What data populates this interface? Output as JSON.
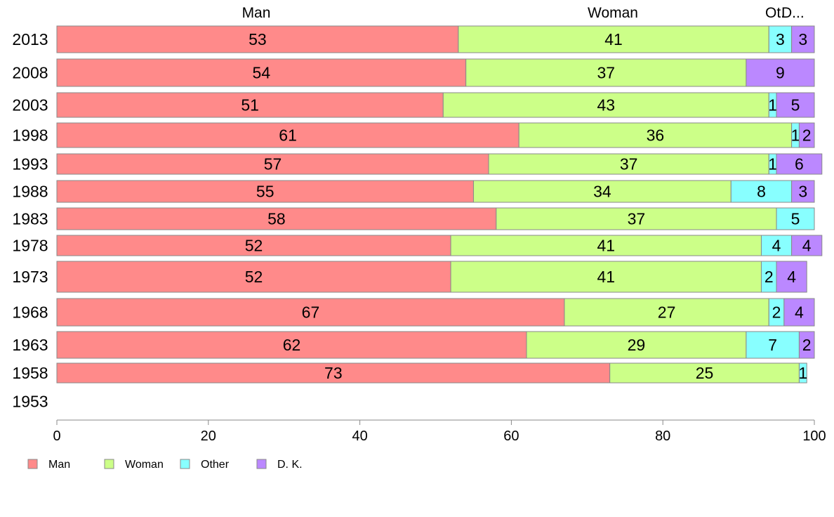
{
  "chart_data": {
    "type": "bar",
    "orientation": "horizontal",
    "stacked": true,
    "categories": [
      "2013",
      "2008",
      "2003",
      "1998",
      "1993",
      "1988",
      "1983",
      "1978",
      "1973",
      "1968",
      "1963",
      "1958",
      "1953"
    ],
    "series": [
      {
        "name": "Man",
        "color": "#ff8a8a",
        "values": [
          53,
          54,
          51,
          61,
          57,
          55,
          58,
          52,
          52,
          67,
          62,
          73,
          null
        ]
      },
      {
        "name": "Woman",
        "color": "#ccff88",
        "values": [
          41,
          37,
          43,
          36,
          37,
          34,
          37,
          41,
          41,
          27,
          29,
          25,
          null
        ]
      },
      {
        "name": "Other",
        "color": "#88ffff",
        "values": [
          3,
          0,
          1,
          1,
          1,
          8,
          5,
          4,
          2,
          2,
          7,
          1,
          null
        ]
      },
      {
        "name": "D. K.",
        "color": "#bb88ff",
        "values": [
          3,
          9,
          5,
          2,
          6,
          3,
          0,
          4,
          4,
          4,
          2,
          0,
          null
        ]
      }
    ],
    "top_labels": [
      "Man",
      "Woman",
      "Ot.",
      "D..."
    ],
    "xlim": [
      0,
      100
    ],
    "xticks": [
      "0",
      "20",
      "40",
      "60",
      "80",
      "100"
    ],
    "grid": false,
    "legend_position": "bottom-left"
  }
}
